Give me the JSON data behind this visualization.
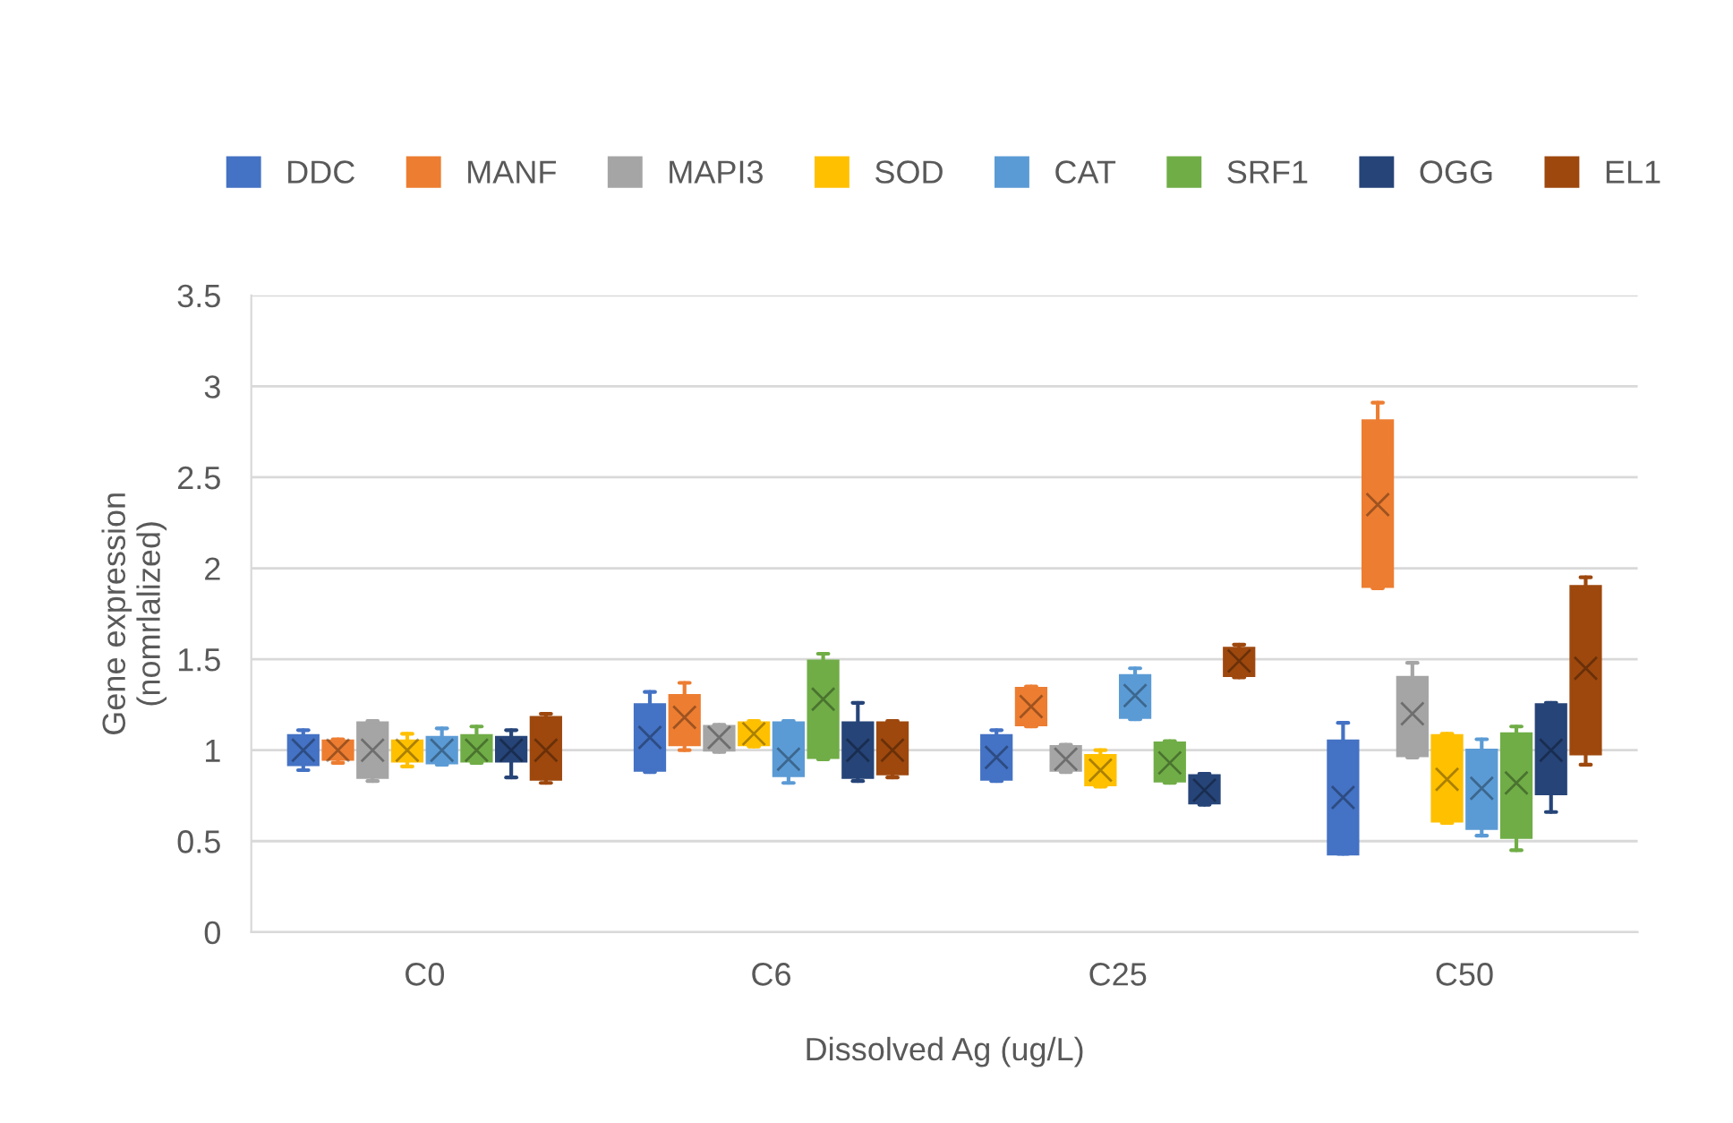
{
  "chart_data": {
    "type": "box",
    "xlabel": "Dissolved Ag (ug/L)",
    "ylabel": "Gene expression\n(nomrlalized)",
    "categories": [
      "C0",
      "C6",
      "C25",
      "C50"
    ],
    "ylim": [
      0,
      3.5
    ],
    "yticks": [
      0,
      0.5,
      1,
      1.5,
      2,
      2.5,
      3,
      3.5
    ],
    "grid": "y",
    "legend": "top",
    "series": [
      {
        "name": "DDC",
        "color": "#4472c4",
        "boxes": [
          {
            "low": 0.89,
            "q1": 0.92,
            "median": 1.0,
            "q3": 1.08,
            "high": 1.11,
            "mean": 1.0
          },
          {
            "low": 0.88,
            "q1": 0.89,
            "median": 1.05,
            "q3": 1.25,
            "high": 1.32,
            "mean": 1.07
          },
          {
            "low": 0.83,
            "q1": 0.84,
            "median": 0.95,
            "q3": 1.08,
            "high": 1.11,
            "mean": 0.96
          },
          {
            "low": 0.43,
            "q1": 0.43,
            "median": 0.66,
            "q3": 1.05,
            "high": 1.15,
            "mean": 0.74
          }
        ]
      },
      {
        "name": "MANF",
        "color": "#ed7d31",
        "boxes": [
          {
            "low": 0.93,
            "q1": 0.95,
            "median": 1.0,
            "q3": 1.05,
            "high": 1.06,
            "mean": 1.0
          },
          {
            "low": 1.0,
            "q1": 1.03,
            "median": 1.18,
            "q3": 1.3,
            "high": 1.37,
            "mean": 1.18
          },
          {
            "low": 1.13,
            "q1": 1.14,
            "median": 1.24,
            "q3": 1.34,
            "high": 1.35,
            "mean": 1.24
          },
          {
            "low": 1.89,
            "q1": 1.9,
            "median": 2.28,
            "q3": 2.81,
            "high": 2.91,
            "mean": 2.35
          }
        ]
      },
      {
        "name": "MAPI3",
        "color": "#a5a5a5",
        "boxes": [
          {
            "low": 0.83,
            "q1": 0.85,
            "median": 1.0,
            "q3": 1.15,
            "high": 1.16,
            "mean": 1.0
          },
          {
            "low": 0.99,
            "q1": 1.0,
            "median": 1.07,
            "q3": 1.13,
            "high": 1.14,
            "mean": 1.07
          },
          {
            "low": 0.88,
            "q1": 0.89,
            "median": 0.95,
            "q3": 1.02,
            "high": 1.03,
            "mean": 0.95
          },
          {
            "low": 0.96,
            "q1": 0.97,
            "median": 1.12,
            "q3": 1.4,
            "high": 1.48,
            "mean": 1.2
          }
        ]
      },
      {
        "name": "SOD",
        "color": "#ffc000",
        "boxes": [
          {
            "low": 0.91,
            "q1": 0.94,
            "median": 1.0,
            "q3": 1.05,
            "high": 1.09,
            "mean": 1.0
          },
          {
            "low": 1.02,
            "q1": 1.03,
            "median": 1.09,
            "q3": 1.15,
            "high": 1.16,
            "mean": 1.09
          },
          {
            "low": 0.8,
            "q1": 0.81,
            "median": 0.89,
            "q3": 0.97,
            "high": 1.0,
            "mean": 0.89
          },
          {
            "low": 0.6,
            "q1": 0.61,
            "median": 0.79,
            "q3": 1.08,
            "high": 1.09,
            "mean": 0.84
          }
        ]
      },
      {
        "name": "CAT",
        "color": "#5b9bd5",
        "boxes": [
          {
            "low": 0.92,
            "q1": 0.93,
            "median": 1.0,
            "q3": 1.07,
            "high": 1.12,
            "mean": 1.0
          },
          {
            "low": 0.82,
            "q1": 0.86,
            "median": 0.95,
            "q3": 1.15,
            "high": 1.16,
            "mean": 0.95
          },
          {
            "low": 1.17,
            "q1": 1.18,
            "median": 1.3,
            "q3": 1.41,
            "high": 1.45,
            "mean": 1.3
          },
          {
            "low": 0.53,
            "q1": 0.57,
            "median": 0.75,
            "q3": 1.0,
            "high": 1.06,
            "mean": 0.79
          }
        ]
      },
      {
        "name": "SRF1",
        "color": "#70ad47",
        "boxes": [
          {
            "low": 0.93,
            "q1": 0.94,
            "median": 1.0,
            "q3": 1.08,
            "high": 1.13,
            "mean": 1.0
          },
          {
            "low": 0.95,
            "q1": 0.96,
            "median": 1.42,
            "q3": 1.49,
            "high": 1.53,
            "mean": 1.28
          },
          {
            "low": 0.82,
            "q1": 0.83,
            "median": 0.93,
            "q3": 1.04,
            "high": 1.05,
            "mean": 0.93
          },
          {
            "low": 0.45,
            "q1": 0.52,
            "median": 0.8,
            "q3": 1.09,
            "high": 1.13,
            "mean": 0.82
          }
        ]
      },
      {
        "name": "OGG",
        "color": "#264478",
        "boxes": [
          {
            "low": 0.85,
            "q1": 0.94,
            "median": 1.0,
            "q3": 1.07,
            "high": 1.11,
            "mean": 1.0
          },
          {
            "low": 0.83,
            "q1": 0.85,
            "median": 1.0,
            "q3": 1.15,
            "high": 1.26,
            "mean": 1.0
          },
          {
            "low": 0.7,
            "q1": 0.71,
            "median": 0.78,
            "q3": 0.86,
            "high": 0.87,
            "mean": 0.78
          },
          {
            "low": 0.66,
            "q1": 0.76,
            "median": 1.0,
            "q3": 1.25,
            "high": 1.26,
            "mean": 1.0
          }
        ]
      },
      {
        "name": "EL1",
        "color": "#9e480e",
        "boxes": [
          {
            "low": 0.82,
            "q1": 0.84,
            "median": 1.0,
            "q3": 1.18,
            "high": 1.2,
            "mean": 1.0
          },
          {
            "low": 0.85,
            "q1": 0.87,
            "median": 1.0,
            "q3": 1.15,
            "high": 1.16,
            "mean": 1.0
          },
          {
            "low": 1.4,
            "q1": 1.41,
            "median": 1.49,
            "q3": 1.56,
            "high": 1.58,
            "mean": 1.49
          },
          {
            "low": 0.92,
            "q1": 0.98,
            "median": 1.4,
            "q3": 1.9,
            "high": 1.95,
            "mean": 1.45
          }
        ]
      }
    ]
  }
}
